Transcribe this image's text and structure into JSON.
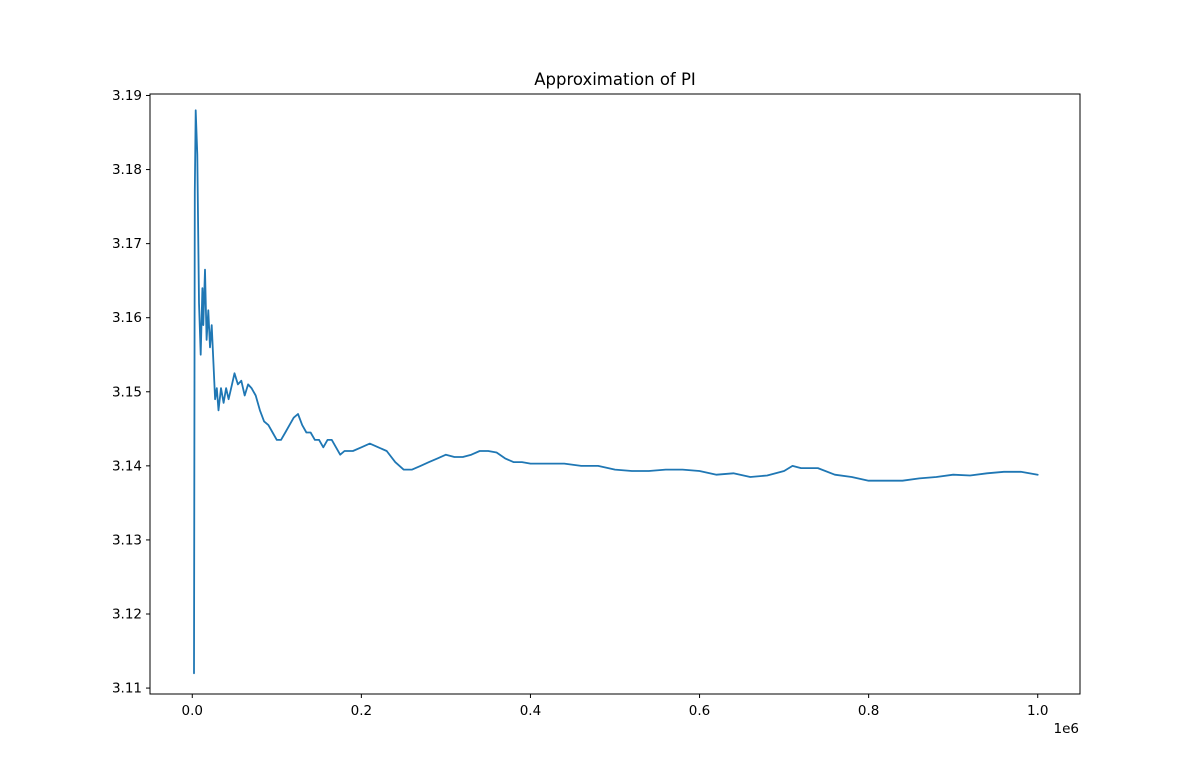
{
  "chart_data": {
    "type": "line",
    "title": "Approximation of PI",
    "xlabel": "",
    "ylabel": "",
    "x_offset_text": "1e6",
    "xlim": [
      -0.05,
      1.05
    ],
    "ylim": [
      3.1092,
      3.1902
    ],
    "x_ticks": [
      0.0,
      0.2,
      0.4,
      0.6,
      0.8,
      1.0
    ],
    "x_tick_labels": [
      "0.0",
      "0.2",
      "0.4",
      "0.6",
      "0.8",
      "1.0"
    ],
    "y_ticks": [
      3.11,
      3.12,
      3.13,
      3.14,
      3.15,
      3.16,
      3.17,
      3.18,
      3.19
    ],
    "y_tick_labels": [
      "3.11",
      "3.12",
      "3.13",
      "3.14",
      "3.15",
      "3.16",
      "3.17",
      "3.18",
      "3.19"
    ],
    "grid": false,
    "series": [
      {
        "color": "#1f77b4",
        "x": [
          0.002,
          0.003,
          0.004,
          0.006,
          0.008,
          0.01,
          0.012,
          0.013,
          0.015,
          0.017,
          0.019,
          0.021,
          0.023,
          0.025,
          0.027,
          0.029,
          0.031,
          0.034,
          0.037,
          0.04,
          0.043,
          0.047,
          0.05,
          0.054,
          0.058,
          0.062,
          0.066,
          0.07,
          0.075,
          0.08,
          0.085,
          0.09,
          0.095,
          0.1,
          0.105,
          0.11,
          0.115,
          0.12,
          0.125,
          0.13,
          0.135,
          0.14,
          0.145,
          0.15,
          0.155,
          0.16,
          0.165,
          0.17,
          0.175,
          0.18,
          0.19,
          0.2,
          0.21,
          0.22,
          0.23,
          0.24,
          0.25,
          0.26,
          0.27,
          0.28,
          0.29,
          0.3,
          0.31,
          0.32,
          0.33,
          0.34,
          0.35,
          0.36,
          0.37,
          0.38,
          0.39,
          0.4,
          0.42,
          0.44,
          0.46,
          0.48,
          0.5,
          0.52,
          0.54,
          0.56,
          0.58,
          0.6,
          0.62,
          0.64,
          0.66,
          0.68,
          0.7,
          0.71,
          0.72,
          0.74,
          0.76,
          0.78,
          0.8,
          0.82,
          0.84,
          0.86,
          0.88,
          0.9,
          0.92,
          0.94,
          0.96,
          0.98,
          1.0
        ],
        "y": [
          3.112,
          3.177,
          3.188,
          3.182,
          3.162,
          3.155,
          3.164,
          3.159,
          3.1665,
          3.157,
          3.161,
          3.156,
          3.159,
          3.154,
          3.149,
          3.1505,
          3.1475,
          3.1505,
          3.1485,
          3.1505,
          3.149,
          3.151,
          3.1525,
          3.151,
          3.1515,
          3.1495,
          3.151,
          3.1505,
          3.1495,
          3.1475,
          3.146,
          3.1455,
          3.1445,
          3.1435,
          3.1435,
          3.1445,
          3.1455,
          3.1465,
          3.147,
          3.1455,
          3.1445,
          3.1445,
          3.1435,
          3.1435,
          3.1425,
          3.1435,
          3.1435,
          3.1425,
          3.1415,
          3.142,
          3.142,
          3.1425,
          3.143,
          3.1425,
          3.142,
          3.1405,
          3.1395,
          3.1395,
          3.14,
          3.1405,
          3.141,
          3.1415,
          3.1412,
          3.1412,
          3.1415,
          3.142,
          3.142,
          3.1418,
          3.141,
          3.1405,
          3.1405,
          3.1403,
          3.1403,
          3.1403,
          3.14,
          3.14,
          3.1395,
          3.1393,
          3.1393,
          3.1395,
          3.1395,
          3.1393,
          3.1388,
          3.139,
          3.1385,
          3.1387,
          3.1393,
          3.14,
          3.1397,
          3.1397,
          3.1388,
          3.1385,
          3.138,
          3.138,
          3.138,
          3.1383,
          3.1385,
          3.1388,
          3.1387,
          3.139,
          3.1392,
          3.1392,
          3.1388
        ]
      }
    ]
  }
}
